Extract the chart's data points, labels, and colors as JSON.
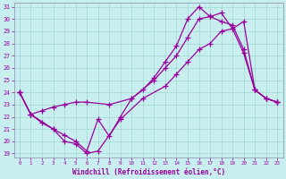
{
  "xlabel": "Windchill (Refroidissement éolien,°C)",
  "bg_color": "#c8eef0",
  "grid_color": "#a0d8d0",
  "line_color": "#990099",
  "spine_color": "#8888aa",
  "xlim": [
    -0.5,
    23.5
  ],
  "ylim": [
    18.7,
    31.3
  ],
  "xticks": [
    0,
    1,
    2,
    3,
    4,
    5,
    6,
    7,
    8,
    9,
    10,
    11,
    12,
    13,
    14,
    15,
    16,
    17,
    18,
    19,
    20,
    21,
    22,
    23
  ],
  "yticks": [
    19,
    20,
    21,
    22,
    23,
    24,
    25,
    26,
    27,
    28,
    29,
    30,
    31
  ],
  "line1_x": [
    0,
    1,
    3,
    4,
    5,
    6,
    7,
    9,
    11,
    13,
    14,
    15,
    16,
    17,
    18,
    19,
    20,
    21,
    22,
    23
  ],
  "line1_y": [
    24.0,
    22.2,
    21.0,
    20.0,
    19.8,
    19.0,
    19.2,
    21.8,
    23.5,
    24.5,
    25.5,
    26.5,
    27.5,
    28.0,
    29.0,
    29.2,
    29.8,
    24.2,
    23.5,
    23.2
  ],
  "line2_x": [
    0,
    1,
    2,
    3,
    4,
    5,
    6,
    7,
    8,
    9,
    10,
    11,
    12,
    13,
    14,
    15,
    16,
    17,
    18,
    19,
    20,
    21,
    22,
    23
  ],
  "line2_y": [
    24.0,
    22.2,
    21.5,
    21.0,
    20.5,
    20.0,
    19.2,
    21.8,
    20.4,
    22.0,
    23.5,
    24.2,
    25.2,
    26.5,
    27.8,
    30.0,
    31.0,
    30.2,
    30.5,
    29.2,
    27.2,
    24.2,
    23.5,
    23.2
  ],
  "line3_x": [
    0,
    1,
    2,
    3,
    4,
    5,
    6,
    8,
    10,
    12,
    13,
    14,
    15,
    16,
    17,
    18,
    19,
    20,
    21,
    22,
    23
  ],
  "line3_y": [
    24.0,
    22.2,
    22.5,
    22.8,
    23.0,
    23.2,
    23.2,
    23.0,
    23.5,
    25.0,
    26.0,
    27.0,
    28.5,
    30.0,
    30.2,
    29.8,
    29.5,
    27.5,
    24.2,
    23.5,
    23.2
  ]
}
